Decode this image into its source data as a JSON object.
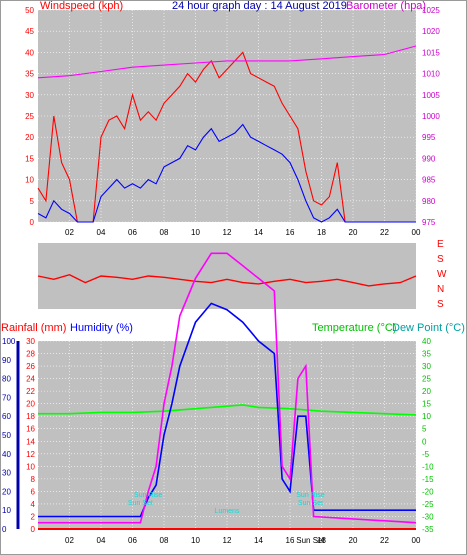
{
  "header": {
    "windspeed_label": "Windspeed (kph)",
    "graph_title": "24 hour graph day : 14 August 2019",
    "barometer_label": "Barometer (hpa)"
  },
  "middle_panel": {
    "direction_labels": [
      "E",
      "S",
      "W",
      "N",
      "S"
    ]
  },
  "bottom_header": {
    "rainfall_label": "Rainfall (mm)",
    "humidity_label": "Humidity (%)",
    "temperature_label": "Temperature (°C)",
    "dewpoint_label": "Dew Point (°C)"
  },
  "annotations": {
    "sun_rise": "Sun Rise",
    "sun_set": "Sun Set",
    "lux_labels": [
      "Sun Rise",
      "Sun Set",
      "Lumens",
      "Sun Rise",
      "Sun Set"
    ]
  },
  "colors": {
    "plot_bg": "#c0c0c0",
    "wind": "#ff0000",
    "gust": "#0000ff",
    "barometer": "#ff00ff",
    "temperature": "#00ff00",
    "dewpoint": "#0000ff",
    "rain": "#ff0000",
    "humidity": "#0000ff",
    "solar": "#ff00ff",
    "axis_left": "#ff0000",
    "axis_right": "#ff00ff",
    "axis_green": "#00c000",
    "annotation": "#00e0e0"
  },
  "chart_data": [
    {
      "type": "line",
      "panel": "wind_pressure",
      "x_ticks": [
        "02",
        "04",
        "06",
        "08",
        "10",
        "12",
        "14",
        "16",
        "18",
        "20",
        "22",
        "00"
      ],
      "y_left": {
        "label": "Windspeed (kph)",
        "range": [
          0,
          50
        ],
        "ticks": [
          0,
          5,
          10,
          15,
          20,
          25,
          30,
          35,
          40,
          45,
          50
        ]
      },
      "y_right": {
        "label": "Barometer (hpa)",
        "range": [
          975,
          1025
        ],
        "ticks": [
          975,
          980,
          985,
          990,
          995,
          1000,
          1005,
          1010,
          1015,
          1020,
          1025
        ]
      },
      "series": [
        {
          "name": "Windspeed",
          "color": "#ff0000",
          "x": [
            0,
            0.5,
            1,
            1.5,
            2,
            2.5,
            3,
            3.5,
            4,
            4.5,
            5,
            5.5,
            6,
            6.5,
            7,
            7.5,
            8,
            8.5,
            9,
            9.5,
            10,
            10.5,
            11,
            11.5,
            12,
            12.5,
            13,
            13.5,
            14,
            14.5,
            15,
            15.5,
            16,
            16.5,
            17,
            17.5,
            18,
            18.5,
            19,
            19.5,
            20,
            21,
            22,
            23,
            24
          ],
          "y": [
            8,
            5,
            25,
            14,
            10,
            0,
            0,
            0,
            20,
            24,
            25,
            22,
            30,
            24,
            26,
            24,
            28,
            30,
            32,
            35,
            33,
            36,
            38,
            34,
            36,
            38,
            40,
            35,
            34,
            33,
            32,
            28,
            25,
            22,
            12,
            5,
            4,
            6,
            14,
            0,
            0,
            0,
            0,
            0,
            0
          ]
        },
        {
          "name": "Gust",
          "color": "#0000ff",
          "x": [
            0,
            0.5,
            1,
            1.5,
            2,
            2.5,
            3,
            3.5,
            4,
            4.5,
            5,
            5.5,
            6,
            6.5,
            7,
            7.5,
            8,
            8.5,
            9,
            9.5,
            10,
            10.5,
            11,
            11.5,
            12,
            12.5,
            13,
            13.5,
            14,
            14.5,
            15,
            15.5,
            16,
            16.5,
            17,
            17.5,
            18,
            18.5,
            19,
            19.5,
            20,
            21,
            22,
            23,
            24
          ],
          "y": [
            2,
            1,
            5,
            3,
            2,
            0,
            0,
            0,
            6,
            8,
            10,
            8,
            9,
            8,
            10,
            9,
            13,
            14,
            15,
            18,
            17,
            20,
            22,
            19,
            20,
            21,
            23,
            20,
            19,
            18,
            17,
            16,
            14,
            10,
            5,
            1,
            0,
            1,
            3,
            0,
            0,
            0,
            0,
            0,
            0
          ]
        },
        {
          "name": "Barometer",
          "color": "#ff00ff",
          "axis": "right",
          "x": [
            0,
            2,
            4,
            6,
            8,
            10,
            12,
            14,
            16,
            18,
            20,
            22,
            24
          ],
          "y": [
            1009,
            1009.5,
            1010.5,
            1011.5,
            1012,
            1012.5,
            1013,
            1013,
            1013,
            1013.5,
            1014,
            1014.5,
            1016.5
          ]
        }
      ]
    },
    {
      "type": "line",
      "panel": "wind_direction",
      "x_ticks": [],
      "y_labels": [
        "E",
        "S",
        "W",
        "N",
        "S"
      ],
      "series": [
        {
          "name": "Wind Direction",
          "color": "#ff0000",
          "x": [
            0,
            1,
            2,
            3,
            4,
            5,
            6,
            7,
            8,
            9,
            10,
            11,
            12,
            13,
            14,
            15,
            16,
            17,
            18,
            19,
            20,
            21,
            22,
            23,
            24
          ],
          "y": [
            0.5,
            0.55,
            0.48,
            0.6,
            0.5,
            0.52,
            0.55,
            0.5,
            0.52,
            0.55,
            0.58,
            0.6,
            0.55,
            0.6,
            0.62,
            0.58,
            0.55,
            0.6,
            0.58,
            0.55,
            0.6,
            0.65,
            0.62,
            0.6,
            0.5
          ]
        }
      ]
    },
    {
      "type": "line",
      "panel": "rain_humidity_temp",
      "x_ticks": [
        "02",
        "04",
        "06",
        "08",
        "10",
        "12",
        "14",
        "16",
        "18",
        "20",
        "22",
        "00"
      ],
      "x_extra_ticks": [
        "Sun Set"
      ],
      "y_left_rain": {
        "label": "Rainfall (mm)",
        "range": [
          0,
          30
        ],
        "ticks": [
          0,
          2,
          4,
          6,
          8,
          10,
          12,
          14,
          16,
          18,
          20,
          22,
          24,
          26,
          28,
          30
        ]
      },
      "y_left_humidity": {
        "label": "Humidity (%)",
        "range": [
          0,
          100
        ],
        "ticks": [
          0,
          10,
          20,
          30,
          40,
          50,
          60,
          70,
          80,
          90,
          100
        ]
      },
      "y_right": {
        "label": "Temperature (°C)",
        "range": [
          -35,
          40
        ],
        "ticks": [
          -35,
          -30,
          -25,
          -20,
          -15,
          -10,
          -5,
          0,
          5,
          10,
          15,
          20,
          25,
          30,
          35,
          40
        ]
      },
      "series": [
        {
          "name": "Temperature",
          "color": "#00ff00",
          "axis": "right",
          "x": [
            0,
            2,
            4,
            6,
            8,
            10,
            12,
            13,
            14,
            16,
            18,
            20,
            22,
            24
          ],
          "y": [
            11,
            11,
            11.5,
            11.5,
            12,
            13,
            14,
            14.5,
            13.5,
            13,
            12,
            11.5,
            11,
            10.5
          ]
        },
        {
          "name": "Rainfall",
          "color": "#ff0000",
          "x": [
            0,
            24
          ],
          "y": [
            0,
            0
          ]
        },
        {
          "name": "Humidity",
          "color": "#0000ff",
          "x": [
            0,
            6.5,
            7,
            7.5,
            8,
            8.5,
            9,
            10,
            11,
            12,
            13,
            14,
            15,
            15.5,
            16,
            16.5,
            17,
            17.5,
            24
          ],
          "y": [
            2,
            2,
            5,
            7,
            15,
            20,
            26,
            33,
            36,
            35,
            33,
            30,
            28,
            8,
            6,
            18,
            18,
            3,
            3
          ]
        },
        {
          "name": "Solar",
          "color": "#ff00ff",
          "x": [
            0,
            6.5,
            7,
            7.5,
            8,
            8.5,
            9,
            10,
            11,
            12,
            13,
            14,
            15,
            15.5,
            16,
            16.5,
            17,
            17.5,
            24
          ],
          "y": [
            1,
            1,
            6,
            10,
            20,
            26,
            34,
            40,
            44,
            44,
            42,
            40,
            38,
            10,
            8,
            24,
            26,
            2,
            1
          ]
        }
      ]
    }
  ]
}
